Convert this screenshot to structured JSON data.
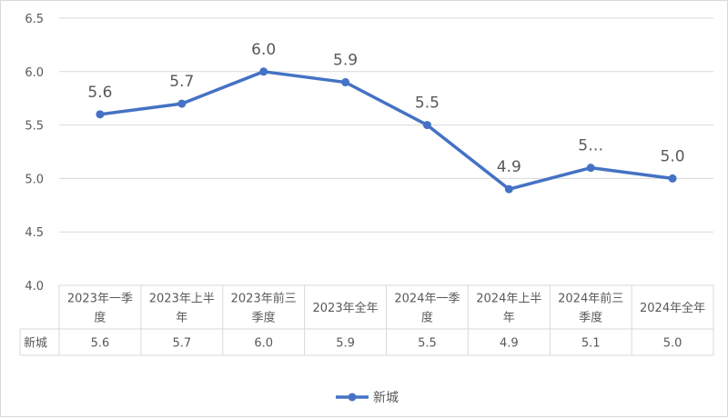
{
  "chart_data": {
    "type": "line",
    "categories": [
      [
        "2023年一季",
        "度"
      ],
      [
        "2023年上半",
        "年"
      ],
      [
        "2023年前三",
        "季度"
      ],
      [
        "2023年全年"
      ],
      [
        "2024年一季",
        "度"
      ],
      [
        "2024年上半",
        "年"
      ],
      [
        "2024年前三",
        "季度"
      ],
      [
        "2024年全年"
      ]
    ],
    "series": [
      {
        "name": "新城",
        "values": [
          5.6,
          5.7,
          6.0,
          5.9,
          5.5,
          4.9,
          5.1,
          5.0
        ],
        "data_labels": [
          "5.6",
          "5.7",
          "6.0",
          "5.9",
          "5.5",
          "4.9",
          "5…",
          "5.0"
        ],
        "table_values": [
          "5.6",
          "5.7",
          "6.0",
          "5.9",
          "5.5",
          "4.9",
          "5.1",
          "5.0"
        ],
        "color": "#4472C4"
      }
    ],
    "y_ticks": [
      "6.5",
      "6.0",
      "5.5",
      "5.0",
      "4.5",
      "4.0"
    ],
    "ylim": [
      4.0,
      6.5
    ],
    "grid": true,
    "data_table": true,
    "legend_position": "bottom"
  }
}
